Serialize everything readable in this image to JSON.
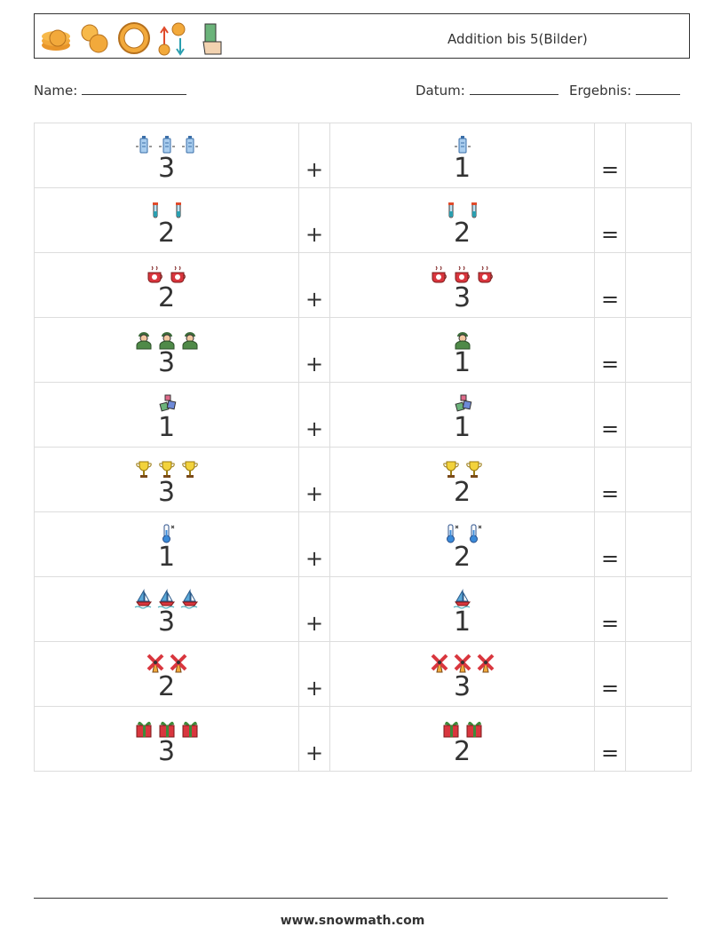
{
  "header": {
    "title": "Addition bis 5(Bilder)",
    "logo_icons": [
      "coin-stack-icon",
      "yen-coin-icon",
      "lira-coin-icon",
      "currency-exchange-icon",
      "money-hand-icon"
    ]
  },
  "meta": {
    "name_label": "Name:",
    "date_label": "Datum:",
    "result_label": "Ergebnis:"
  },
  "symbols": {
    "plus": "+",
    "equals": "="
  },
  "problems": [
    {
      "icon": "power-bank-icon",
      "a": "3",
      "b": "1"
    },
    {
      "icon": "test-tube-icon",
      "a": "2",
      "b": "2"
    },
    {
      "icon": "coffee-cup-icon",
      "a": "2",
      "b": "3"
    },
    {
      "icon": "soldier-icon",
      "a": "3",
      "b": "1"
    },
    {
      "icon": "gift-boxes-icon",
      "a": "1",
      "b": "1"
    },
    {
      "icon": "trophy-icon",
      "a": "3",
      "b": "2"
    },
    {
      "icon": "thermometer-icon",
      "a": "1",
      "b": "2"
    },
    {
      "icon": "sailboat-icon",
      "a": "3",
      "b": "1"
    },
    {
      "icon": "windmill-icon",
      "a": "2",
      "b": "3"
    },
    {
      "icon": "present-icon",
      "a": "3",
      "b": "2"
    }
  ],
  "footer": {
    "url": "www.snowmath.com"
  },
  "colors": {
    "border": "#333333",
    "grid": "#dddddd",
    "coin": "#f2a93b"
  }
}
